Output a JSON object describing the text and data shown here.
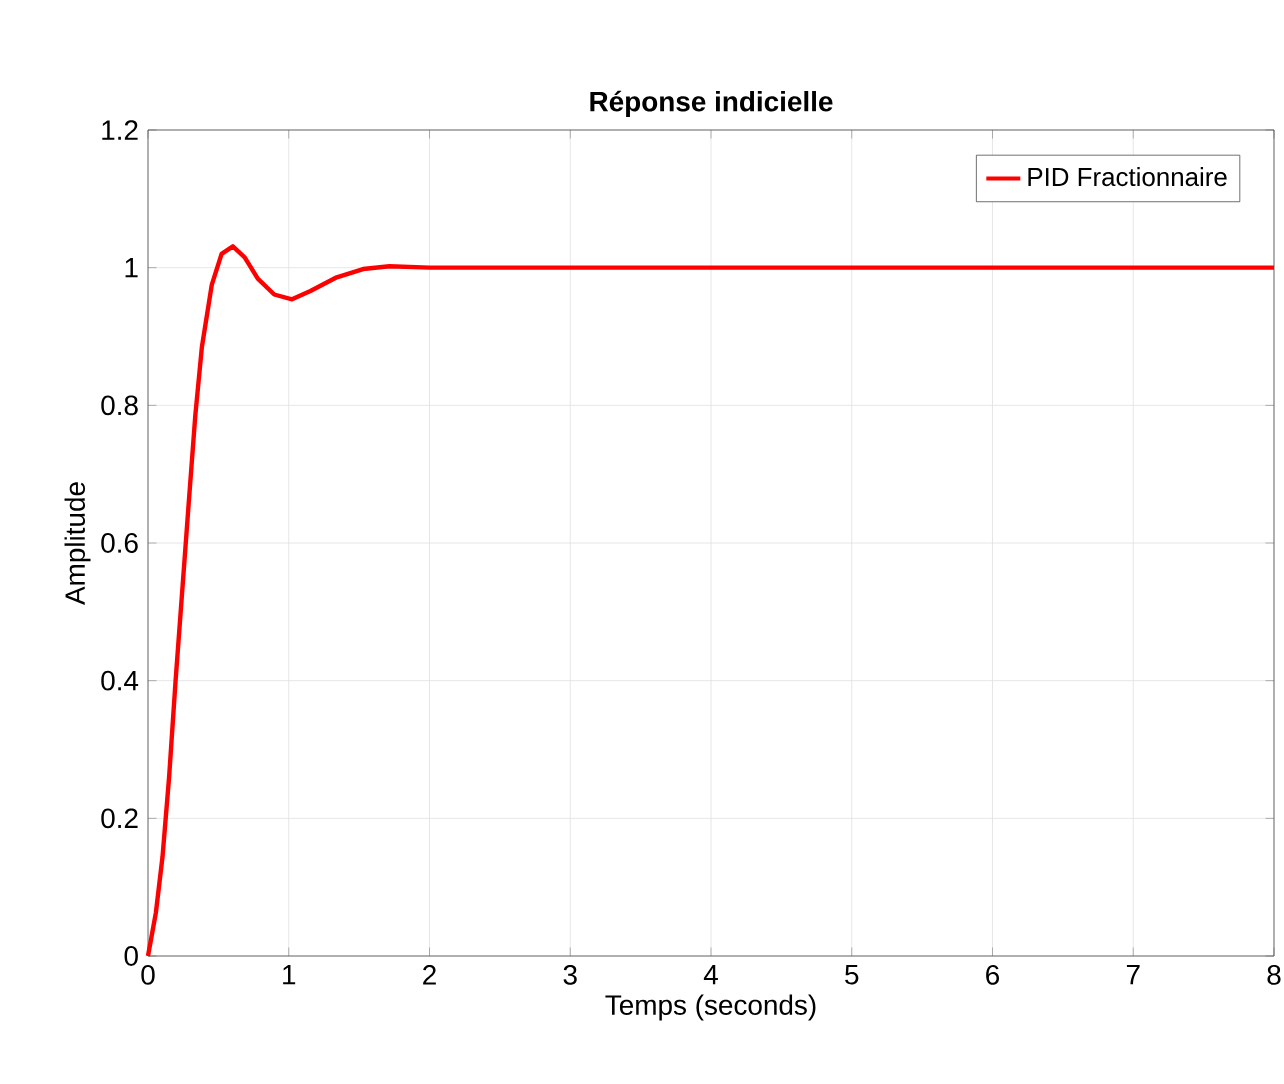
{
  "chart_data": {
    "type": "line",
    "title": "**Réponse indicielle**",
    "xlabel": "Temps (seconds)",
    "ylabel": "Amplitude",
    "xlim": [
      0,
      8
    ],
    "ylim": [
      0,
      1.2
    ],
    "xticks": [
      0,
      1,
      2,
      3,
      4,
      5,
      6,
      7,
      8
    ],
    "yticks": [
      0,
      0.2,
      0.4,
      0.6,
      0.8,
      1,
      1.2
    ],
    "grid": true,
    "legend": "top right",
    "marker": "none",
    "line_style": "solid",
    "series": [
      {
        "name": "PID Fractionnaire",
        "color": "#ff0000",
        "x": [
          0,
          0.056,
          0.103,
          0.15,
          0.196,
          0.243,
          0.29,
          0.336,
          0.383,
          0.453,
          0.523,
          0.603,
          0.687,
          0.78,
          0.897,
          1.023,
          1.154,
          1.341,
          1.528,
          1.715,
          2,
          3,
          4,
          5,
          6,
          7,
          8
        ],
        "values": [
          0,
          0.063,
          0.144,
          0.26,
          0.4,
          0.53,
          0.66,
          0.785,
          0.885,
          0.975,
          1.02,
          1.031,
          1.015,
          0.984,
          0.961,
          0.954,
          0.966,
          0.986,
          0.998,
          1.002,
          1,
          1,
          1,
          1,
          1,
          1,
          1
        ]
      }
    ]
  }
}
